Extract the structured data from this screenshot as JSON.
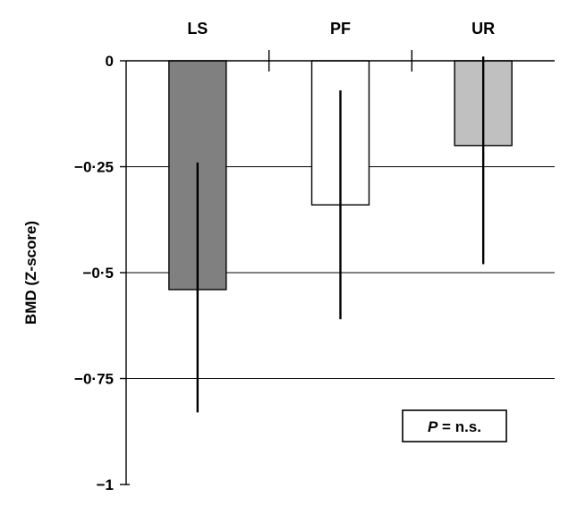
{
  "chart_data": {
    "type": "bar",
    "categories": [
      "LS",
      "PF",
      "UR"
    ],
    "values": [
      -0.54,
      -0.34,
      -0.2
    ],
    "error_low": [
      -0.83,
      -0.61,
      -0.48
    ],
    "error_high": [
      -0.24,
      -0.07,
      0.01
    ],
    "bar_colors": [
      "#808080",
      "#ffffff",
      "#c0c0c0"
    ],
    "ylabel": "BMD (Z-score)",
    "ylim": [
      -1,
      0
    ],
    "yticks": [
      0,
      -0.25,
      -0.5,
      -0.75,
      -1
    ],
    "ytick_labels": [
      "0",
      "−0·25",
      "−0·5",
      "−0·75",
      "−1"
    ],
    "category_labels_position": "top",
    "grid": true,
    "annotation": {
      "italic": "P",
      "rest": " = n.s."
    }
  }
}
